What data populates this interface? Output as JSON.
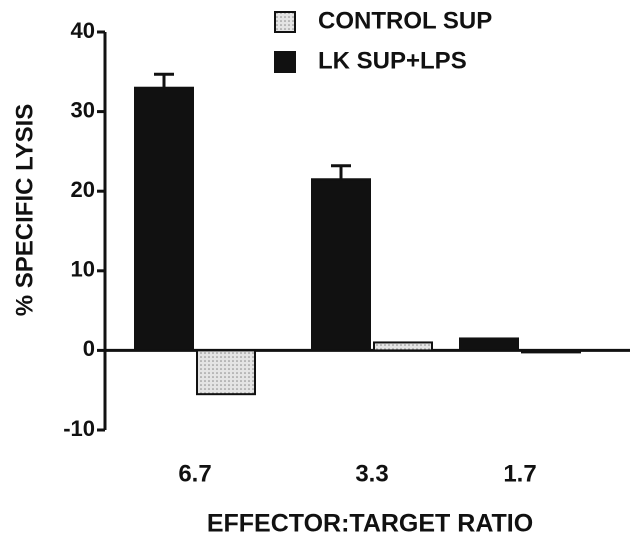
{
  "chart_data": {
    "type": "bar",
    "y_label": "% SPECIFIC LYSIS",
    "x_label": "EFFECTOR:TARGET RATIO",
    "categories": [
      "6.7",
      "3.3",
      "1.7"
    ],
    "series": [
      {
        "name": "CONTROL SUP",
        "color": "#d8d8d8",
        "values": [
          -5.5,
          1,
          0
        ]
      },
      {
        "name": "LK SUP+LPS",
        "color": "#111111",
        "values": [
          33,
          21.5,
          1.5
        ],
        "errors": [
          1.7,
          1.7,
          null
        ]
      }
    ],
    "ylim": [
      -10,
      40
    ],
    "yticks": [
      -10,
      0,
      10,
      20,
      30,
      40
    ],
    "legend": "top"
  }
}
